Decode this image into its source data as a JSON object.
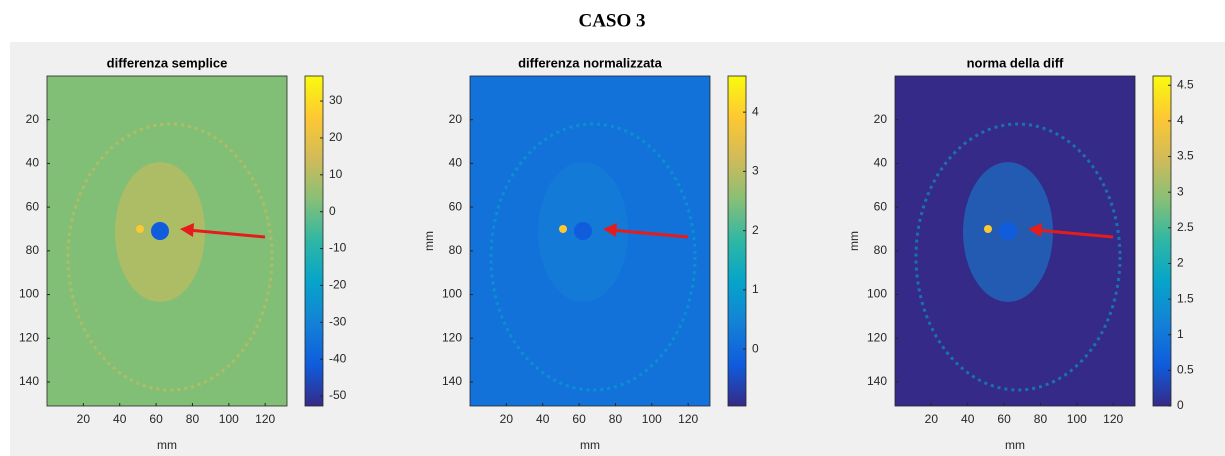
{
  "title": "CASO 3",
  "chart_data": [
    {
      "type": "heatmap",
      "title": "differenza semplice",
      "xlabel": "mm",
      "xlim": [
        0,
        132
      ],
      "ylim": [
        0,
        151
      ],
      "xticks": [
        20,
        40,
        60,
        80,
        100,
        120
      ],
      "yticks": [
        20,
        40,
        60,
        80,
        100,
        120,
        140
      ],
      "clim": [
        -52.7,
        36.8
      ],
      "cticks": [
        -50,
        -40,
        -30,
        -20,
        -10,
        0,
        10,
        20,
        30
      ],
      "background": "#82bf76"
    },
    {
      "type": "heatmap",
      "title": "differenza normalizzata",
      "xlabel": "mm",
      "ylabel": "mm",
      "xlim": [
        0,
        132
      ],
      "ylim": [
        0,
        151
      ],
      "xticks": [
        20,
        40,
        60,
        80,
        100,
        120
      ],
      "yticks": [
        20,
        40,
        60,
        80,
        100,
        120,
        140
      ],
      "clim": [
        -0.96,
        4.61
      ],
      "cticks": [
        0,
        1,
        2,
        3,
        4
      ],
      "background": "#1272da"
    },
    {
      "type": "heatmap",
      "title": "norma della diff",
      "xlabel": "mm",
      "ylabel": "mm",
      "xlim": [
        0,
        132
      ],
      "ylim": [
        0,
        151
      ],
      "xticks": [
        20,
        40,
        60,
        80,
        100,
        120
      ],
      "yticks": [
        20,
        40,
        60,
        80,
        100,
        120,
        140
      ],
      "clim": [
        0,
        4.63
      ],
      "cticks": [
        0,
        0.5,
        1,
        1.5,
        2,
        2.5,
        3,
        3.5,
        4,
        4.5
      ],
      "background": "#352a87"
    }
  ],
  "colormap": [
    "#352a87",
    "#0f5cdd",
    "#1481d6",
    "#06a4ca",
    "#2eb7a4",
    "#87bf77",
    "#d1bb59",
    "#fec832",
    "#f9fb0e"
  ]
}
